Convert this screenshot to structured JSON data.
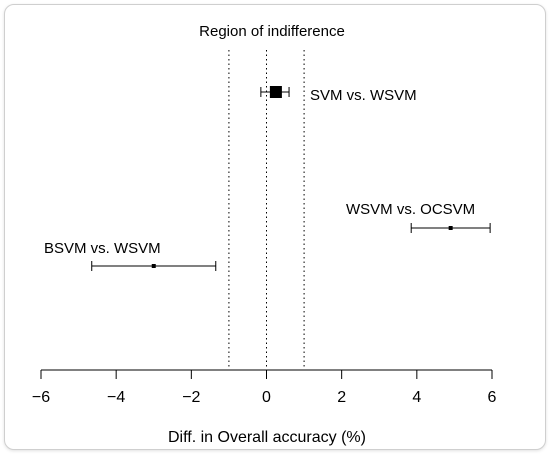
{
  "chart_data": {
    "type": "forest",
    "xlabel": "Diff. in Overall accuracy (%)",
    "xlim": [
      -6,
      6
    ],
    "x_ticks": [
      -6,
      -4,
      -2,
      0,
      2,
      4,
      6
    ],
    "x_tick_labels": [
      "−6",
      "−4",
      "−2",
      "0",
      "2",
      "4",
      "6"
    ],
    "region": {
      "label": "Region of indifference",
      "bounds": [
        -1,
        1
      ],
      "center": 0
    },
    "comparisons": [
      {
        "label": "SVM vs. WSVM",
        "estimate": 0.25,
        "lower": -0.15,
        "upper": 0.6,
        "marker": "large"
      },
      {
        "label": "WSVM vs. OCSVM",
        "estimate": 4.9,
        "lower": 3.85,
        "upper": 5.95,
        "marker": "small"
      },
      {
        "label": "BSVM vs. WSVM",
        "estimate": -3.0,
        "lower": -4.65,
        "upper": -1.35,
        "marker": "small"
      }
    ]
  }
}
